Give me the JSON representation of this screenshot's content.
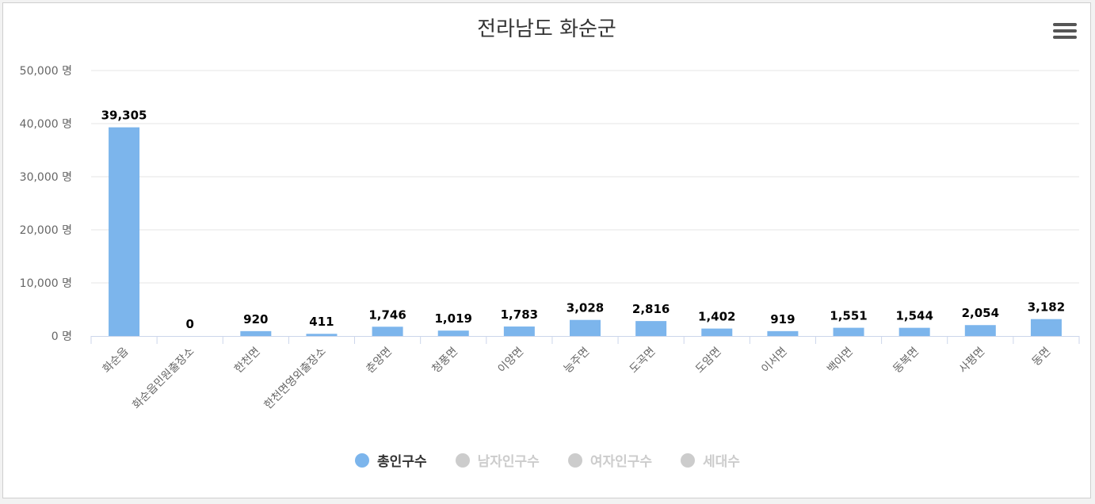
{
  "chart_data": {
    "type": "bar",
    "title": "전라남도 화순군",
    "categories": [
      "화순읍",
      "화순읍민원출장소",
      "한천면",
      "한천면영외출장소",
      "춘양면",
      "청풍면",
      "이양면",
      "능주면",
      "도곡면",
      "도암면",
      "이서면",
      "백아면",
      "동복면",
      "사평면",
      "동면"
    ],
    "series": [
      {
        "name": "총인구수",
        "values": [
          39305,
          0,
          920,
          411,
          1746,
          1019,
          1783,
          3028,
          2816,
          1402,
          919,
          1551,
          1544,
          2054,
          3182
        ],
        "visible": true
      }
    ],
    "data_labels": [
      "39,305",
      "0",
      "920",
      "411",
      "1,746",
      "1,019",
      "1,783",
      "3,028",
      "2,816",
      "1,402",
      "919",
      "1,551",
      "1,544",
      "2,054",
      "3,182"
    ],
    "ylim": [
      0,
      50000
    ],
    "yticks": [
      0,
      10000,
      20000,
      30000,
      40000,
      50000
    ],
    "ytick_labels": [
      "0 명",
      "10,000 명",
      "20,000 명",
      "30,000 명",
      "40,000 명",
      "50,000 명"
    ],
    "grid": true,
    "legend_position": "bottom"
  },
  "legend": [
    {
      "label": "총인구수",
      "color": "#7cb5ec",
      "active": true
    },
    {
      "label": "남자인구수",
      "color": "#cccccc",
      "active": false
    },
    {
      "label": "여자인구수",
      "color": "#cccccc",
      "active": false
    },
    {
      "label": "세대수",
      "color": "#cccccc",
      "active": false
    }
  ],
  "colors": {
    "bar": "#7cb5ec",
    "grid": "#e6e6e6",
    "axis": "#ccd6eb"
  },
  "menu": {
    "icon": "hamburger-menu-icon"
  }
}
